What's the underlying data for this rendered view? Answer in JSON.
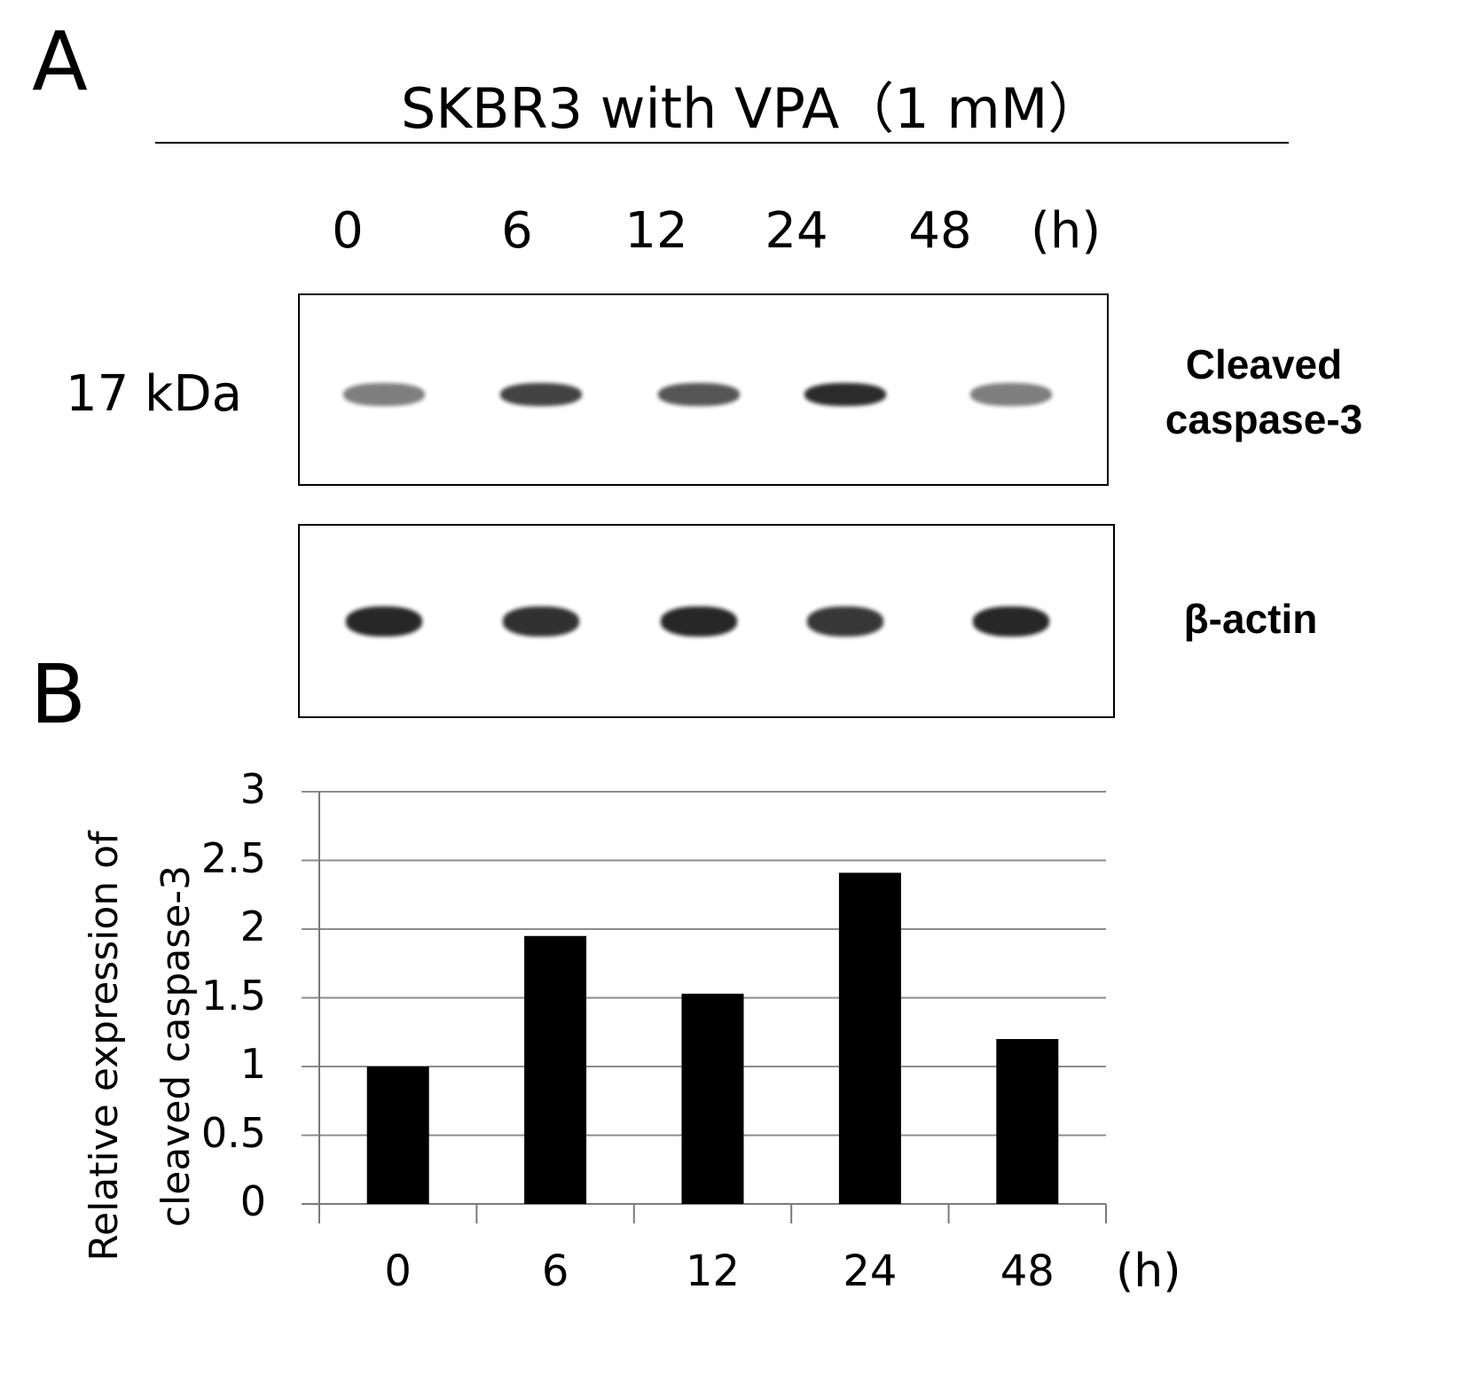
{
  "panels": {
    "a": "A",
    "b": "B"
  },
  "blot": {
    "title": "SKBR3 with  VPA（1 mM）",
    "lanes": [
      "0",
      "6",
      "12",
      "24",
      "48"
    ],
    "unit": "(h)",
    "mw_label": "17 kDa",
    "rows": [
      {
        "protein": [
          "Cleaved",
          "caspase-3"
        ],
        "band_intensity": [
          0.55,
          0.8,
          0.72,
          0.9,
          0.55
        ]
      },
      {
        "protein": [
          "β-actin"
        ],
        "band_intensity": [
          0.92,
          0.88,
          0.92,
          0.85,
          0.92
        ]
      }
    ]
  },
  "chart_data": {
    "type": "bar",
    "categories": [
      "0",
      "6",
      "12",
      "24",
      "48"
    ],
    "values": [
      1.0,
      1.95,
      1.53,
      2.41,
      1.2
    ],
    "xlabel": "(h)",
    "ylabel_lines": [
      "Relative expression of",
      "cleaved caspase-3"
    ],
    "ylim": [
      0,
      3
    ],
    "yticks": [
      "0",
      "0.5",
      "1",
      "1.5",
      "2",
      "2.5",
      "3"
    ],
    "grid": true,
    "bar_color": "#000000",
    "grid_color": "#8c8c8c"
  }
}
